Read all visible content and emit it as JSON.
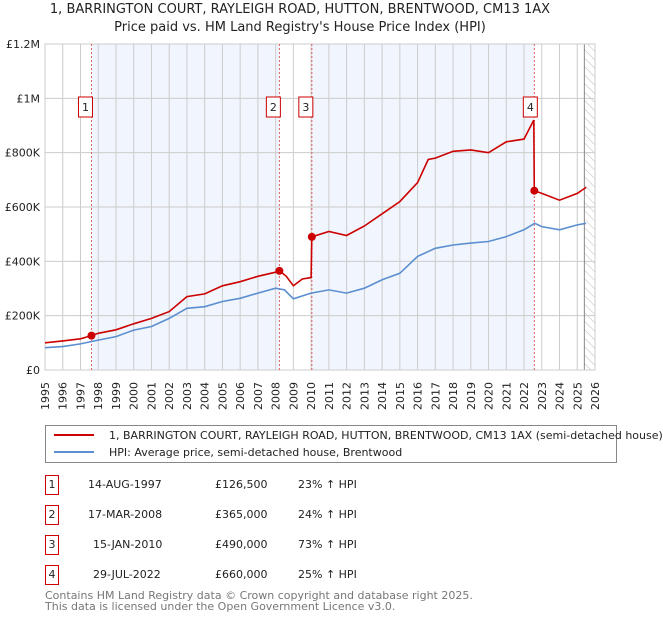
{
  "title": "1, BARRINGTON COURT, RAYLEIGH ROAD, HUTTON, BRENTWOOD, CM13 1AX",
  "subtitle": "Price paid vs. HM Land Registry's House Price Index (HPI)",
  "chart_data": {
    "type": "line",
    "title": "1, BARRINGTON COURT, RAYLEIGH ROAD, HUTTON, BRENTWOOD, CM13 1AX",
    "subtitle": "Price paid vs. HM Land Registry's House Price Index (HPI)",
    "xlim": [
      1995,
      2026
    ],
    "ylim": [
      0,
      1200000
    ],
    "y_ticks": [
      {
        "v": 0,
        "label": "£0"
      },
      {
        "v": 200000,
        "label": "£200K"
      },
      {
        "v": 400000,
        "label": "£400K"
      },
      {
        "v": 600000,
        "label": "£600K"
      },
      {
        "v": 800000,
        "label": "£800K"
      },
      {
        "v": 1000000,
        "label": "£1M"
      },
      {
        "v": 1200000,
        "label": "£1.2M"
      }
    ],
    "x_ticks": [
      "1995",
      "1996",
      "1997",
      "1998",
      "1999",
      "2000",
      "2001",
      "2002",
      "2003",
      "2004",
      "2005",
      "2006",
      "2007",
      "2008",
      "2009",
      "2010",
      "2011",
      "2012",
      "2013",
      "2014",
      "2015",
      "2016",
      "2017",
      "2018",
      "2019",
      "2020",
      "2021",
      "2022",
      "2023",
      "2024",
      "2025",
      "2026"
    ],
    "grid": true,
    "legend_placement": "bottom",
    "series": [
      {
        "name": "1, BARRINGTON COURT, RAYLEIGH ROAD, HUTTON, BRENTWOOD, CM13 1AX (semi-detached house)",
        "color": "#cc0000",
        "x": [
          1995,
          1996,
          1997,
          1997.62,
          1998,
          1999,
          2000,
          2001,
          2002,
          2003,
          2004,
          2005,
          2006,
          2007,
          2008,
          2008.21,
          2008.6,
          2009,
          2009.5,
          2010.0,
          2010.04,
          2011,
          2012,
          2013,
          2014,
          2015,
          2016,
          2016.6,
          2017,
          2018,
          2019,
          2020,
          2021,
          2022,
          2022.55,
          2022.58,
          2023,
          2024,
          2025,
          2025.5
        ],
        "y": [
          100000,
          107000,
          115000,
          126500,
          135000,
          148000,
          170000,
          190000,
          215000,
          270000,
          280000,
          310000,
          325000,
          345000,
          360000,
          365000,
          345000,
          310000,
          335000,
          340000,
          490000,
          510000,
          495000,
          530000,
          575000,
          620000,
          690000,
          775000,
          780000,
          805000,
          810000,
          800000,
          840000,
          850000,
          920000,
          660000,
          650000,
          625000,
          650000,
          672000
        ]
      },
      {
        "name": "HPI: Average price, semi-detached house, Brentwood",
        "color": "#5b8fd0",
        "x": [
          1995,
          1996,
          1997,
          1998,
          1999,
          2000,
          2001,
          2002,
          2003,
          2004,
          2005,
          2006,
          2007,
          2008,
          2008.5,
          2009,
          2010,
          2011,
          2012,
          2013,
          2014,
          2015,
          2016,
          2017,
          2018,
          2019,
          2020,
          2021,
          2022,
          2022.6,
          2023,
          2024,
          2025,
          2025.5
        ],
        "y": [
          82000,
          86000,
          96000,
          110000,
          123000,
          147000,
          160000,
          190000,
          227000,
          233000,
          252000,
          264000,
          283000,
          301000,
          295000,
          262000,
          283000,
          295000,
          283000,
          301000,
          332000,
          356000,
          418000,
          448000,
          460000,
          467000,
          473000,
          491000,
          516000,
          540000,
          528000,
          516000,
          534000,
          540000
        ]
      }
    ],
    "sales": [
      {
        "n": "1",
        "x": 1997.62,
        "y": 126500
      },
      {
        "n": "2",
        "x": 2008.21,
        "y": 365000
      },
      {
        "n": "3",
        "x": 2010.04,
        "y": 490000
      },
      {
        "n": "4",
        "x": 2022.58,
        "y": 660000
      }
    ],
    "shaded_ranges": [
      [
        1997.62,
        2008.21
      ],
      [
        2010.04,
        2022.58
      ]
    ],
    "forecast_hatch_from": 2025.4
  },
  "legend": {
    "red_label": "1, BARRINGTON COURT, RAYLEIGH ROAD, HUTTON, BRENTWOOD, CM13 1AX (semi-detached house)",
    "blue_label": "HPI: Average price, semi-detached house, Brentwood"
  },
  "transactions": [
    {
      "n": "1",
      "date": "14-AUG-1997",
      "price": "£126,500",
      "hpi": "23% ↑ HPI"
    },
    {
      "n": "2",
      "date": "17-MAR-2008",
      "price": "£365,000",
      "hpi": "24% ↑ HPI"
    },
    {
      "n": "3",
      "date": "15-JAN-2010",
      "price": "£490,000",
      "hpi": "73% ↑ HPI"
    },
    {
      "n": "4",
      "date": "29-JUL-2022",
      "price": "£660,000",
      "hpi": "25% ↑ HPI"
    }
  ],
  "footer": {
    "line1": "Contains HM Land Registry data © Crown copyright and database right 2025.",
    "line2": "This data is licensed under the Open Government Licence v3.0."
  }
}
